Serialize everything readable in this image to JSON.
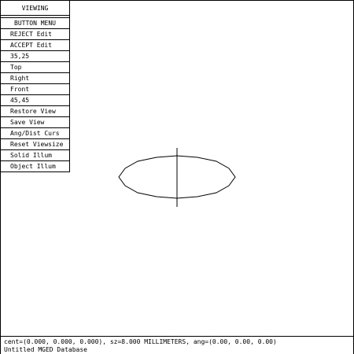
{
  "menu": {
    "title": "VIEWING",
    "items": [
      {
        "label": "BUTTON MENU"
      },
      {
        "label": "REJECT Edit"
      },
      {
        "label": "ACCEPT Edit"
      },
      {
        "label": "35,25"
      },
      {
        "label": "Top"
      },
      {
        "label": "Right"
      },
      {
        "label": "Front"
      },
      {
        "label": "45,45"
      },
      {
        "label": "Restore View"
      },
      {
        "label": "Save View"
      },
      {
        "label": "Ang/Dist Curs"
      },
      {
        "label": "Reset Viewsize"
      },
      {
        "label": "Solid Illum"
      },
      {
        "label": "Object Illum"
      }
    ]
  },
  "status": {
    "line1": "cent=(0.000, 0.000, 0.000), sz=8.000 MILLIMETERS, ang=(0.00, 0.00, 0.00)",
    "line2": "Untitled MGED Database"
  },
  "colors": {
    "background": "#ffffff",
    "foreground": "#000000"
  }
}
